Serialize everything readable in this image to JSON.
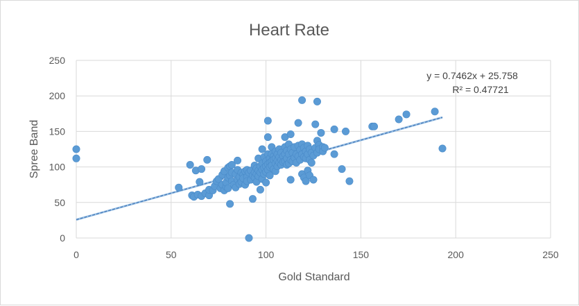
{
  "chart_data": {
    "type": "scatter",
    "title": "Heart Rate",
    "xlabel": "Gold Standard",
    "ylabel": "Spree Band",
    "xlim": [
      0,
      250
    ],
    "ylim": [
      0,
      250
    ],
    "xticks": [
      "0",
      "50",
      "100",
      "150",
      "200",
      "250"
    ],
    "yticks": [
      "0",
      "50",
      "100",
      "150",
      "200",
      "250"
    ],
    "grid": true,
    "legend": "none",
    "trendline": {
      "type": "linear",
      "slope": 0.7462,
      "intercept": 25.758,
      "equation_label": "y = 0.7462x + 25.758",
      "r2_label": "R² = 0.47721"
    },
    "series": [
      {
        "points": [
          [
            0,
            125
          ],
          [
            0,
            112
          ],
          [
            54,
            71
          ],
          [
            60,
            103
          ],
          [
            61,
            60
          ],
          [
            62,
            58
          ],
          [
            63,
            95
          ],
          [
            64,
            61
          ],
          [
            65,
            79
          ],
          [
            66,
            97
          ],
          [
            66,
            59
          ],
          [
            68,
            63
          ],
          [
            69,
            110
          ],
          [
            70,
            60
          ],
          [
            70,
            68
          ],
          [
            72,
            67
          ],
          [
            73,
            73
          ],
          [
            74,
            80
          ],
          [
            75,
            83
          ],
          [
            76,
            70
          ],
          [
            77,
            89
          ],
          [
            77,
            75
          ],
          [
            78,
            94
          ],
          [
            78,
            67
          ],
          [
            79,
            72
          ],
          [
            79,
            78
          ],
          [
            80,
            99
          ],
          [
            80,
            85
          ],
          [
            80,
            70
          ],
          [
            81,
            101
          ],
          [
            81,
            88
          ],
          [
            81,
            48
          ],
          [
            82,
            103
          ],
          [
            82,
            92
          ],
          [
            82,
            80
          ],
          [
            83,
            75
          ],
          [
            84,
            90
          ],
          [
            84,
            71
          ],
          [
            85,
            109
          ],
          [
            85,
            96
          ],
          [
            85,
            82
          ],
          [
            86,
            86
          ],
          [
            86,
            76
          ],
          [
            87,
            92
          ],
          [
            87,
            79
          ],
          [
            88,
            89
          ],
          [
            88,
            84
          ],
          [
            89,
            94
          ],
          [
            89,
            75
          ],
          [
            90,
            96
          ],
          [
            90,
            86
          ],
          [
            90,
            80
          ],
          [
            91,
            92
          ],
          [
            91,
            0
          ],
          [
            92,
            95
          ],
          [
            92,
            82
          ],
          [
            93,
            55
          ],
          [
            93,
            88
          ],
          [
            94,
            102
          ],
          [
            94,
            92
          ],
          [
            94,
            85
          ],
          [
            95,
            98
          ],
          [
            95,
            90
          ],
          [
            95,
            79
          ],
          [
            96,
            112
          ],
          [
            96,
            95
          ],
          [
            96,
            87
          ],
          [
            97,
            101
          ],
          [
            97,
            92
          ],
          [
            97,
            68
          ],
          [
            98,
            125
          ],
          [
            98,
            105
          ],
          [
            98,
            96
          ],
          [
            98,
            83
          ],
          [
            99,
            114
          ],
          [
            99,
            99
          ],
          [
            99,
            90
          ],
          [
            100,
            108
          ],
          [
            100,
            101
          ],
          [
            100,
            93
          ],
          [
            100,
            78
          ],
          [
            101,
            165
          ],
          [
            101,
            142
          ],
          [
            101,
            118
          ],
          [
            101,
            104
          ],
          [
            101,
            96
          ],
          [
            102,
            112
          ],
          [
            102,
            106
          ],
          [
            102,
            100
          ],
          [
            102,
            88
          ],
          [
            103,
            128
          ],
          [
            103,
            118
          ],
          [
            103,
            108
          ],
          [
            103,
            102
          ],
          [
            104,
            115
          ],
          [
            104,
            110
          ],
          [
            104,
            97
          ],
          [
            105,
            122
          ],
          [
            105,
            112
          ],
          [
            105,
            105
          ],
          [
            105,
            94
          ],
          [
            106,
            118
          ],
          [
            106,
            109
          ],
          [
            106,
            101
          ],
          [
            107,
            125
          ],
          [
            107,
            114
          ],
          [
            107,
            106
          ],
          [
            108,
            120
          ],
          [
            108,
            110
          ],
          [
            108,
            103
          ],
          [
            109,
            115
          ],
          [
            109,
            107
          ],
          [
            110,
            142
          ],
          [
            110,
            128
          ],
          [
            110,
            118
          ],
          [
            110,
            108
          ],
          [
            111,
            123
          ],
          [
            111,
            112
          ],
          [
            111,
            103
          ],
          [
            112,
            132
          ],
          [
            112,
            118
          ],
          [
            112,
            105
          ],
          [
            113,
            146
          ],
          [
            113,
            125
          ],
          [
            113,
            110
          ],
          [
            113,
            82
          ],
          [
            114,
            120
          ],
          [
            114,
            108
          ],
          [
            115,
            128
          ],
          [
            115,
            113
          ],
          [
            116,
            118
          ],
          [
            116,
            106
          ],
          [
            117,
            162
          ],
          [
            117,
            130
          ],
          [
            117,
            115
          ],
          [
            118,
            124
          ],
          [
            118,
            110
          ],
          [
            119,
            194
          ],
          [
            119,
            132
          ],
          [
            119,
            118
          ],
          [
            119,
            90
          ],
          [
            120,
            127
          ],
          [
            120,
            114
          ],
          [
            120,
            85
          ],
          [
            121,
            122
          ],
          [
            121,
            112
          ],
          [
            121,
            80
          ],
          [
            122,
            130
          ],
          [
            122,
            118
          ],
          [
            122,
            95
          ],
          [
            123,
            125
          ],
          [
            123,
            110
          ],
          [
            123,
            88
          ],
          [
            124,
            120
          ],
          [
            124,
            106
          ],
          [
            125,
            116
          ],
          [
            125,
            82
          ],
          [
            126,
            160
          ],
          [
            126,
            127
          ],
          [
            127,
            192
          ],
          [
            127,
            137
          ],
          [
            127,
            120
          ],
          [
            128,
            131
          ],
          [
            128,
            125
          ],
          [
            129,
            148
          ],
          [
            130,
            128
          ],
          [
            130,
            122
          ],
          [
            131,
            127
          ],
          [
            136,
            153
          ],
          [
            136,
            118
          ],
          [
            140,
            97
          ],
          [
            142,
            150
          ],
          [
            144,
            80
          ],
          [
            156,
            157
          ],
          [
            157,
            157
          ],
          [
            170,
            167
          ],
          [
            174,
            174
          ],
          [
            189,
            178
          ],
          [
            193,
            126
          ]
        ]
      }
    ]
  }
}
